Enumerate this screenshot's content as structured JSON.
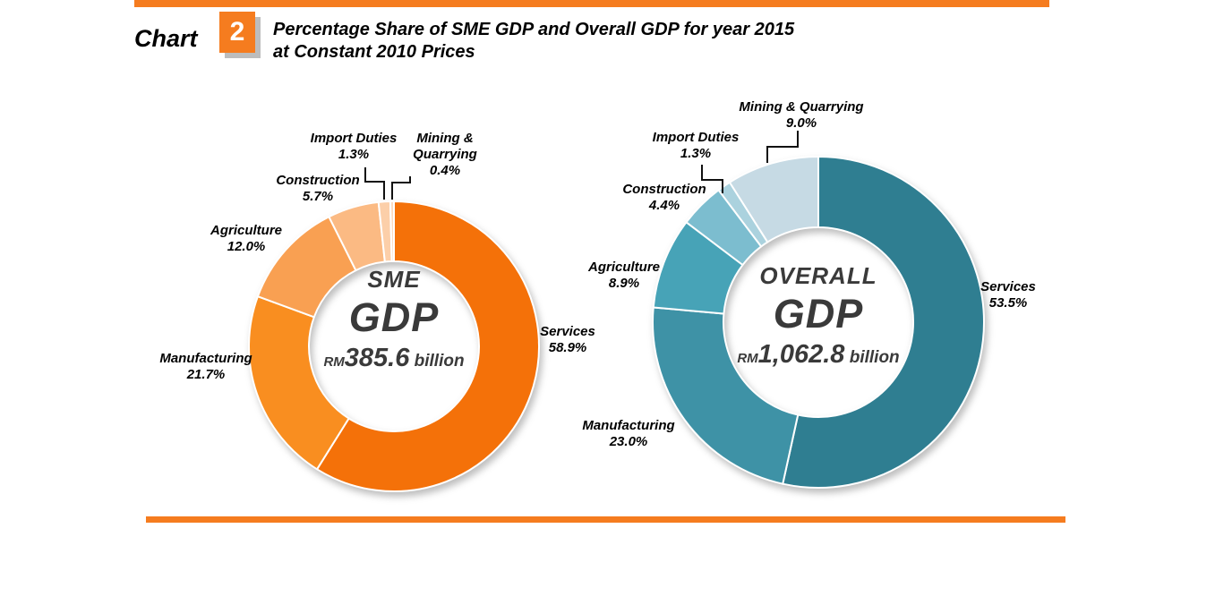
{
  "header": {
    "chart_word": "Chart",
    "chart_number": "2",
    "title_line1": "Percentage Share of SME GDP and Overall GDP for year 2015",
    "title_line2": "at Constant 2010 Prices"
  },
  "colors": {
    "accent_orange": "#F57C1F",
    "leader_line": "#111111",
    "separator": "#ffffff"
  },
  "chart_data": [
    {
      "type": "pie",
      "subtype": "donut",
      "title": "SME GDP",
      "total_label": "RM385.6 billion",
      "units": "percent",
      "center": {
        "top": "SME",
        "main": "GDP",
        "currency": "RM",
        "value": "385.6",
        "unit": "billion"
      },
      "slices": [
        {
          "label": "Services",
          "value": 58.9,
          "color": "#F47109"
        },
        {
          "label": "Manufacturing",
          "value": 21.7,
          "color": "#F98E20"
        },
        {
          "label": "Agriculture",
          "value": 12.0,
          "color": "#F9A052"
        },
        {
          "label": "Construction",
          "value": 5.7,
          "color": "#FBBA83"
        },
        {
          "label": "Import Duties",
          "value": 1.3,
          "color": "#FCCFA9"
        },
        {
          "label": "Mining & Quarrying",
          "value": 0.4,
          "color": "#FBDBC1"
        }
      ],
      "annotations": {
        "services": {
          "name": "Services",
          "pct": "58.9%"
        },
        "manufacturing": {
          "name": "Manufacturing",
          "pct": "21.7%"
        },
        "agriculture": {
          "name": "Agriculture",
          "pct": "12.0%"
        },
        "construction": {
          "name": "Construction",
          "pct": "5.7%"
        },
        "import_duties": {
          "name": "Import Duties",
          "pct": "1.3%"
        },
        "mining": {
          "name_line1": "Mining &",
          "name_line2": "Quarrying",
          "pct": "0.4%"
        }
      }
    },
    {
      "type": "pie",
      "subtype": "donut",
      "title": "OVERALL GDP",
      "total_label": "RM1,062.8 billion",
      "units": "percent",
      "center": {
        "top": "OVERALL",
        "main": "GDP",
        "currency": "RM",
        "value": "1,062.8",
        "unit": "billion"
      },
      "slices": [
        {
          "label": "Services",
          "value": 53.5,
          "color": "#2F7E91"
        },
        {
          "label": "Manufacturing",
          "value": 23.0,
          "color": "#3E92A6"
        },
        {
          "label": "Agriculture",
          "value": 8.9,
          "color": "#47A3B7"
        },
        {
          "label": "Construction",
          "value": 4.4,
          "color": "#7CBDCF"
        },
        {
          "label": "Import Duties",
          "value": 1.3,
          "color": "#ABD2DE"
        },
        {
          "label": "Mining & Quarrying",
          "value": 9.0,
          "color": "#C6DAE4"
        }
      ],
      "annotations": {
        "services": {
          "name": "Services",
          "pct": "53.5%"
        },
        "manufacturing": {
          "name": "Manufacturing",
          "pct": "23.0%"
        },
        "agriculture": {
          "name": "Agriculture",
          "pct": "8.9%"
        },
        "construction": {
          "name": "Construction",
          "pct": "4.4%"
        },
        "import_duties": {
          "name": "Import Duties",
          "pct": "1.3%"
        },
        "mining": {
          "name": "Mining & Quarrying",
          "pct": "9.0%"
        }
      }
    }
  ]
}
